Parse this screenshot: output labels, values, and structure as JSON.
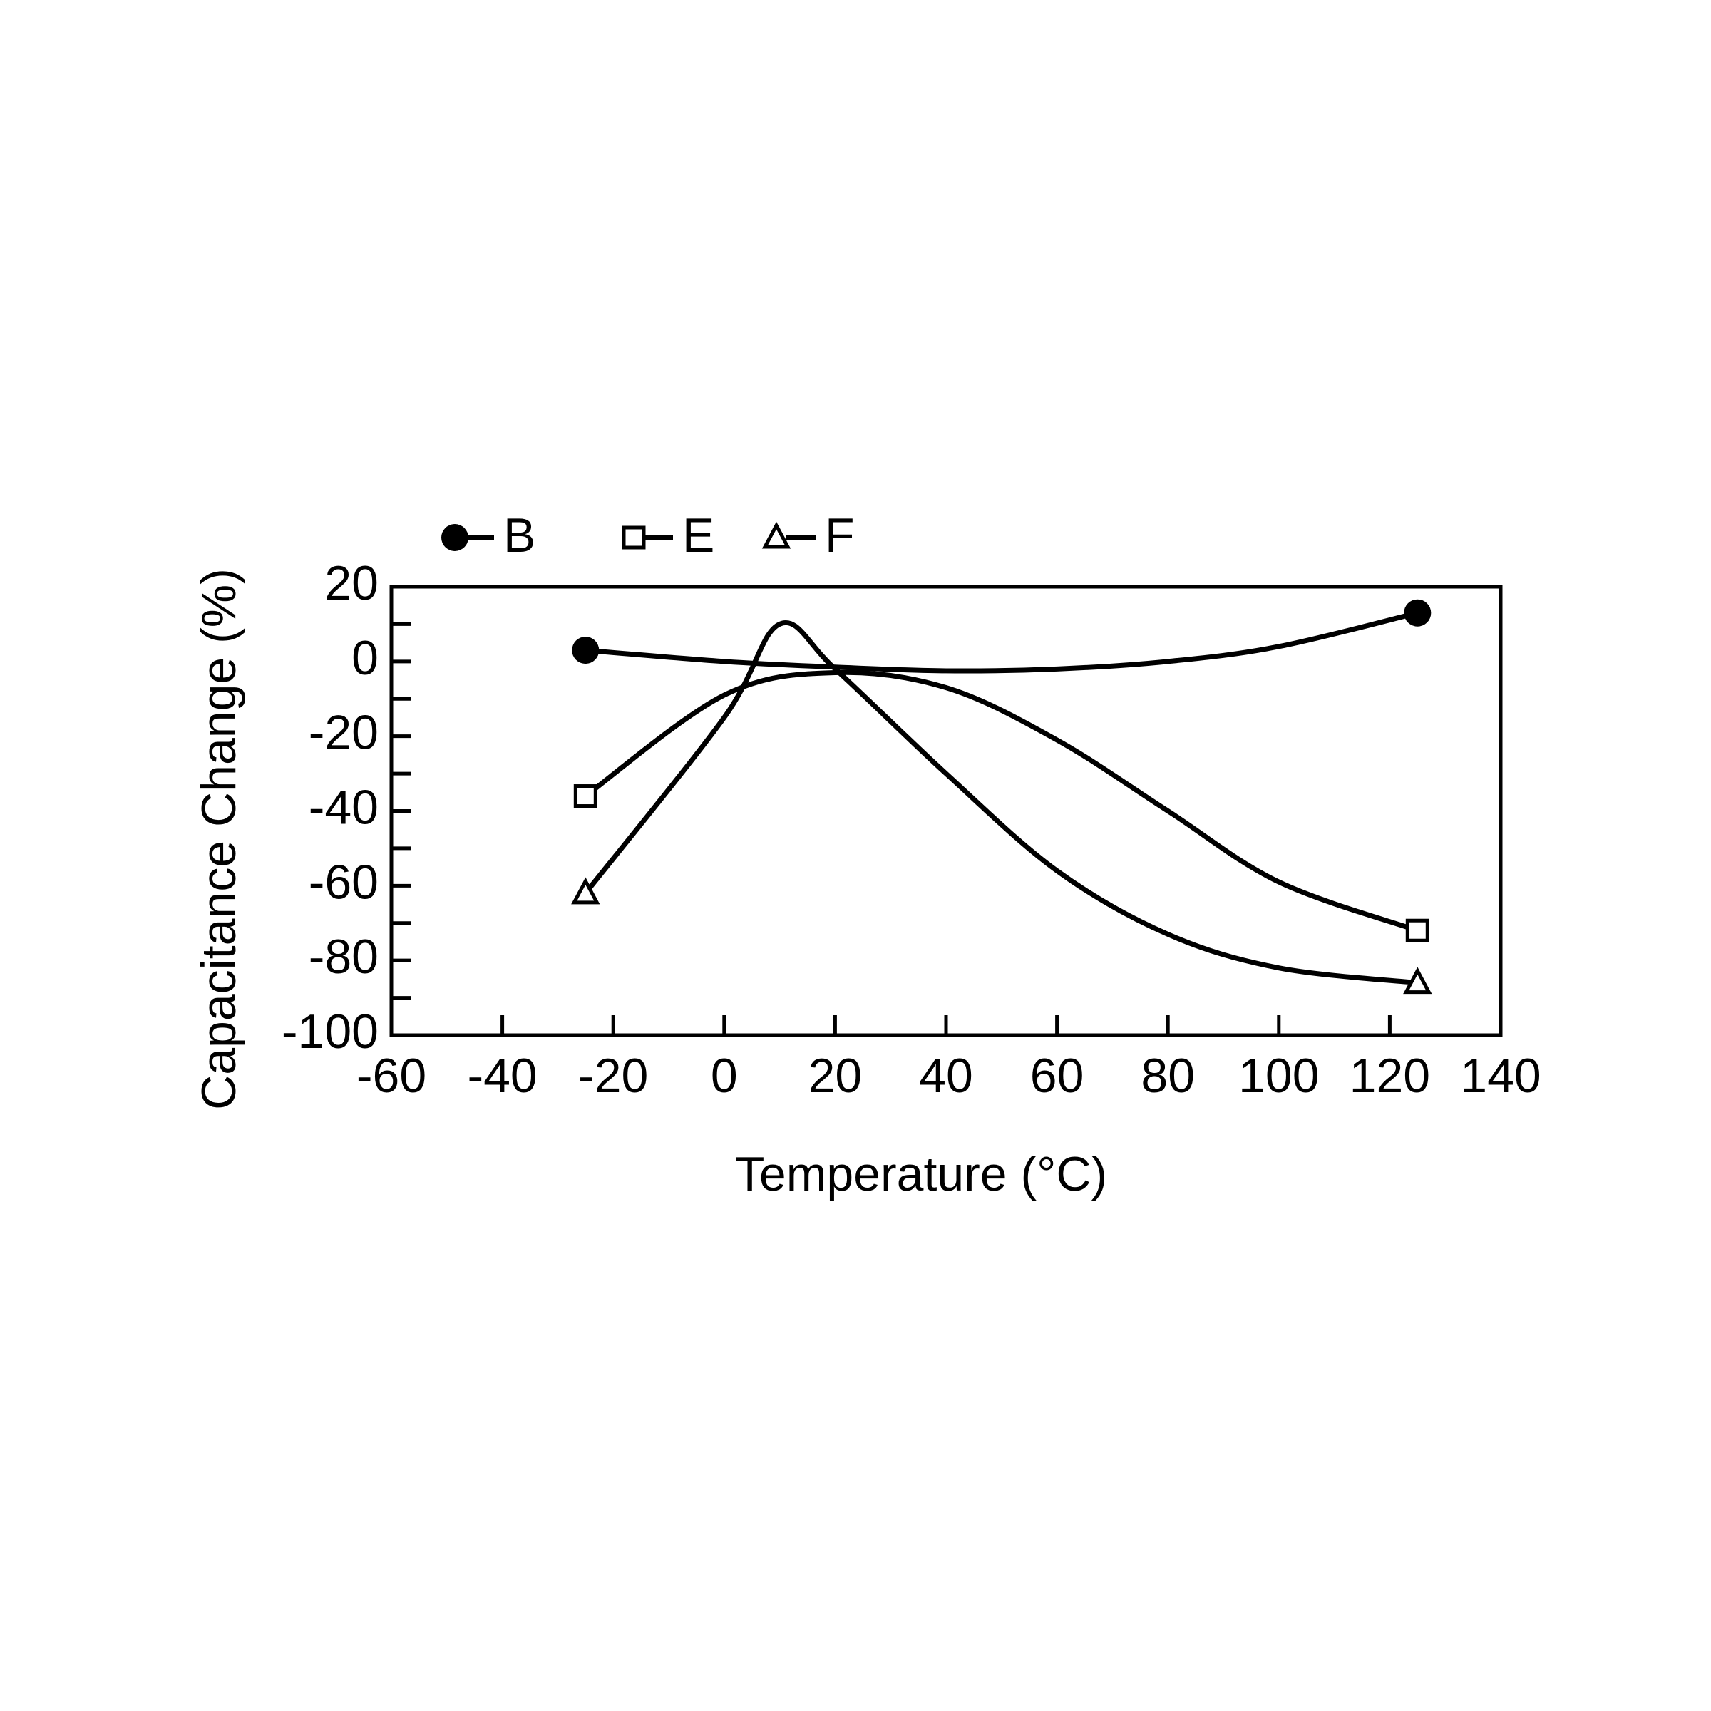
{
  "chart_data": {
    "type": "line",
    "xlabel": "Temperature (°C)",
    "ylabel": "Capacitance Change (%)",
    "xlim": [
      -60,
      140
    ],
    "xticks": [
      -60,
      -40,
      -20,
      0,
      20,
      40,
      60,
      80,
      100,
      120,
      140
    ],
    "ylim": [
      -100,
      20
    ],
    "yticks": [
      -100,
      -80,
      -60,
      -40,
      -20,
      0,
      20
    ],
    "yminorticks": [
      -90,
      -70,
      -50,
      -30,
      -10,
      10
    ],
    "color": "#000000",
    "series": [
      {
        "name": "B",
        "marker": "circle",
        "x": [
          -25,
          0,
          20,
          40,
          60,
          80,
          100,
          125
        ],
        "values": [
          3,
          0,
          -1.5,
          -2.5,
          -2,
          0,
          4,
          13
        ]
      },
      {
        "name": "E",
        "marker": "square",
        "x": [
          -25,
          0,
          20,
          40,
          60,
          80,
          100,
          125
        ],
        "values": [
          -36,
          -9,
          -3,
          -7,
          -21,
          -40,
          -59,
          -72
        ]
      },
      {
        "name": "F",
        "marker": "triangle",
        "x": [
          -25,
          0,
          10,
          20,
          40,
          60,
          80,
          100,
          125
        ],
        "values": [
          -62,
          -15,
          10,
          -2,
          -30,
          -56,
          -73,
          -82,
          -86
        ]
      }
    ]
  }
}
